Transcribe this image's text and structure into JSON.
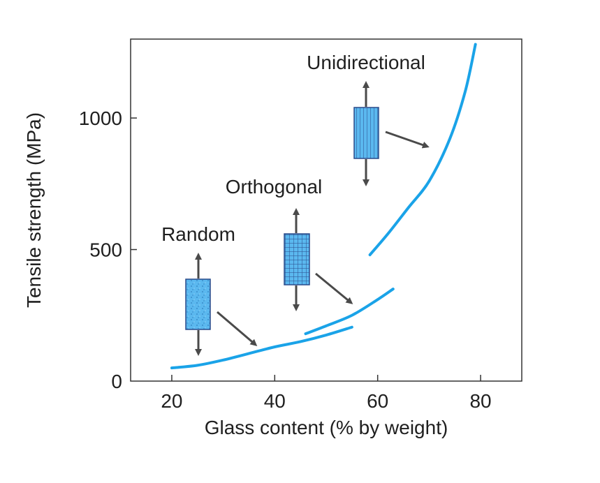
{
  "chart_data": {
    "type": "line",
    "xlabel": "Glass content (% by weight)",
    "ylabel": "Tensile strength (MPa)",
    "xlim": [
      12,
      88
    ],
    "ylim": [
      0,
      1300
    ],
    "xticks": [
      20,
      40,
      60,
      80
    ],
    "yticks": [
      0,
      500,
      1000
    ],
    "grid": false,
    "series": [
      {
        "name": "Random",
        "x": [
          20,
          25,
          30,
          35,
          40,
          45,
          50,
          55
        ],
        "y": [
          50,
          60,
          80,
          105,
          130,
          150,
          175,
          205
        ]
      },
      {
        "name": "Orthogonal",
        "x": [
          46,
          50,
          55,
          60,
          63
        ],
        "y": [
          180,
          210,
          250,
          310,
          350
        ]
      },
      {
        "name": "Unidirectional",
        "x": [
          58.5,
          62,
          66,
          70,
          74,
          77,
          79
        ],
        "y": [
          480,
          560,
          660,
          760,
          920,
          1100,
          1280
        ]
      }
    ],
    "annotations": [
      {
        "label": "Random",
        "pattern": "random-fibers"
      },
      {
        "label": "Orthogonal",
        "pattern": "grid-fibers"
      },
      {
        "label": "Unidirectional",
        "pattern": "parallel-fibers"
      }
    ],
    "colors": {
      "curve": "#1aa3e8",
      "swatch": "#5bb8ef",
      "swatch_border": "#2a4a8a",
      "arrow": "#4a4a4a"
    }
  }
}
